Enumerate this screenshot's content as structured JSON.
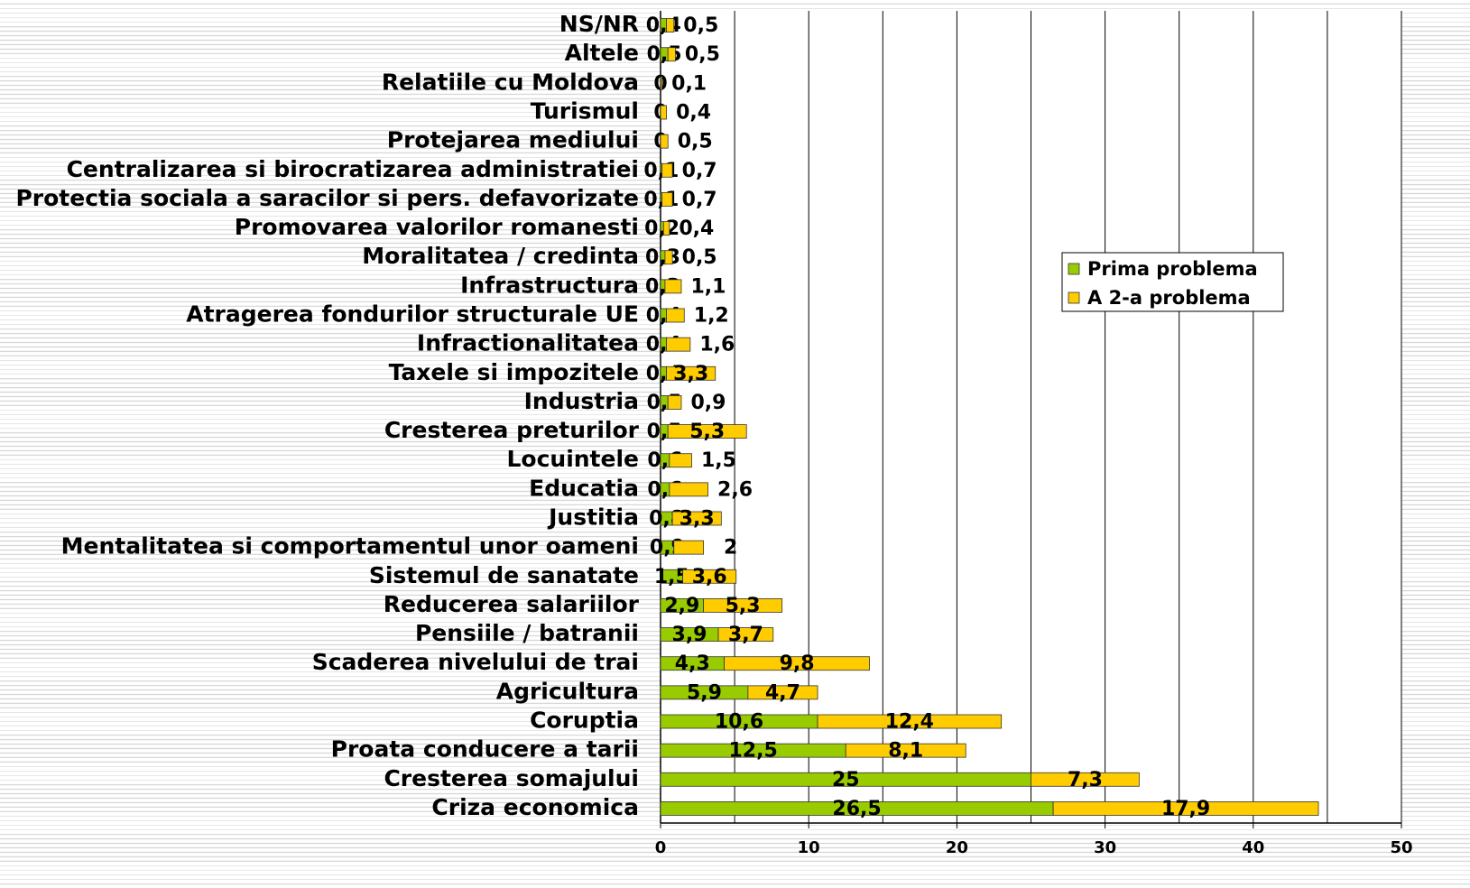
{
  "chart_data": {
    "type": "stacked-bar-horizontal",
    "categories": [
      "Criza economica",
      "Cresterea somajului",
      "Proata conducere a tarii",
      "Coruptia",
      "Agricultura",
      "Scaderea nivelului de trai",
      "Pensiile / batranii",
      "Reducerea salariilor",
      "Sistemul de sanatate",
      "Mentalitatea si comportamentul unor oameni",
      "Justitia",
      "Educatia",
      "Locuintele",
      "Cresterea preturilor",
      "Industria",
      "Taxele si impozitele",
      "Infractionalitatea",
      "Atragerea fondurilor structurale UE",
      "Infrastructura",
      "Moralitatea / credinta",
      "Promovarea valorilor romanesti",
      "Protectia sociala a saracilor si pers. defavorizate",
      "Centralizarea si birocratizarea administratiei",
      "Protejarea mediului",
      "Turismul",
      "Relatiile cu Moldova",
      "Altele",
      "NS/NR"
    ],
    "series": [
      {
        "name": "Prima problema",
        "color": "#99cc00",
        "values": [
          26.5,
          25,
          12.5,
          10.6,
          5.9,
          4.3,
          3.9,
          2.9,
          1.5,
          0.9,
          0.8,
          0.6,
          0.6,
          0.5,
          0.5,
          0.4,
          0.4,
          0.4,
          0.3,
          0.3,
          0.2,
          0.1,
          0.1,
          0,
          0,
          0,
          0.5,
          0.4
        ],
        "value_labels": [
          "26,5",
          "25",
          "12,5",
          "10,6",
          "5,9",
          "4,3",
          "3,9",
          "2,9",
          "1,5",
          "0,9",
          "0,8",
          "0,6",
          "0,6",
          "0,5",
          "0,5",
          "0,4",
          "0,4",
          "0,4",
          "0,3",
          "0,3",
          "0,2",
          "0,1",
          "0,1",
          "0",
          "0",
          "0",
          "0,5",
          "0,4"
        ]
      },
      {
        "name": "A 2-a problema",
        "color": "#ffcc00",
        "values": [
          17.9,
          7.3,
          8.1,
          12.4,
          4.7,
          9.8,
          3.7,
          5.3,
          3.6,
          2,
          3.3,
          2.6,
          1.5,
          5.3,
          0.9,
          3.3,
          1.6,
          1.2,
          1.1,
          0.5,
          0.4,
          0.7,
          0.7,
          0.5,
          0.4,
          0.1,
          0.5,
          0.5
        ],
        "value_labels": [
          "17,9",
          "7,3",
          "8,1",
          "12,4",
          "4,7",
          "9,8",
          "3,7",
          "5,3",
          "3,6",
          "2",
          "3,3",
          "2,6",
          "1,5",
          "5,3",
          "0,9",
          "3,3",
          "1,6",
          "1,2",
          "1,1",
          "0,5",
          "0,4",
          "0,7",
          "0,7",
          "0,5",
          "0,4",
          "0,1",
          "0,5",
          "0,5"
        ]
      }
    ],
    "xlim": [
      0,
      50
    ],
    "xticks": [
      0,
      10,
      20,
      30,
      40,
      50
    ],
    "minor_xticks": [
      5,
      15,
      25,
      35,
      45
    ],
    "grid": true,
    "legend": "right"
  }
}
